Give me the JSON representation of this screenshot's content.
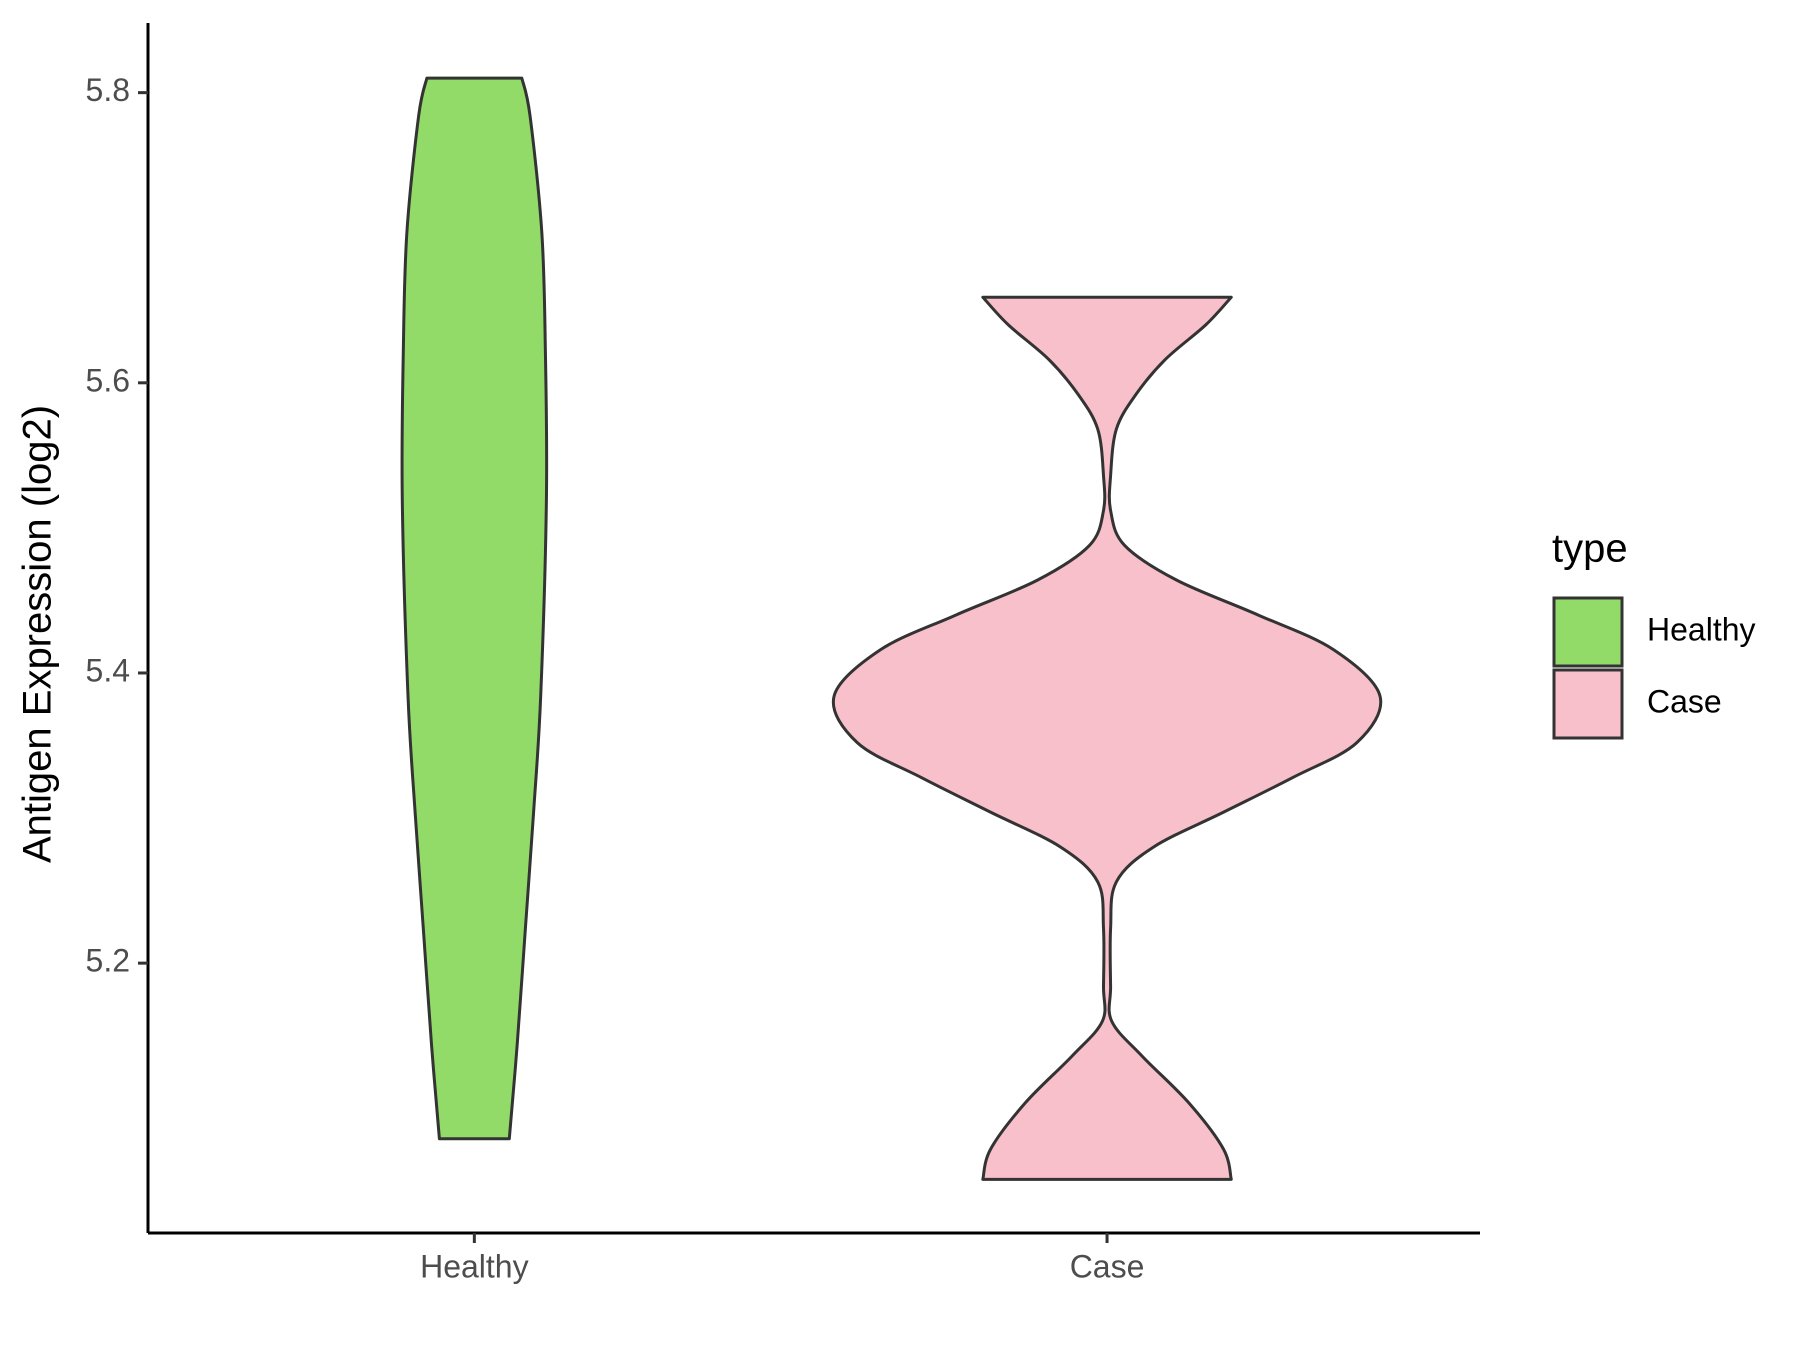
{
  "chart_data": {
    "type": "violin",
    "y_label": "Antigen Expression (log2)",
    "categories": [
      "Healthy",
      "Case"
    ],
    "ylim": [
      5.014,
      5.848
    ],
    "yticks": [
      5.2,
      5.4,
      5.6,
      5.8
    ],
    "legend_title": "type",
    "legend_position": "right",
    "series": [
      {
        "name": "Healthy",
        "color": "#93db68",
        "y": [
          5.81,
          5.784,
          5.704,
          5.624,
          5.52,
          5.384,
          5.304,
          5.224,
          5.144,
          5.079
        ],
        "density": [
          0.174,
          0.204,
          0.247,
          0.26,
          0.264,
          0.243,
          0.217,
          0.187,
          0.157,
          0.128
        ]
      },
      {
        "name": "Case",
        "color": "#f8c0cb",
        "y": [
          5.659,
          5.64,
          5.616,
          5.592,
          5.568,
          5.536,
          5.512,
          5.488,
          5.464,
          5.44,
          5.416,
          5.384,
          5.352,
          5.328,
          5.304,
          5.28,
          5.256,
          5.224,
          5.184,
          5.16,
          5.136,
          5.104,
          5.072,
          5.051
        ],
        "density": [
          0.455,
          0.362,
          0.213,
          0.106,
          0.034,
          0.013,
          0.013,
          0.064,
          0.255,
          0.553,
          0.83,
          1.0,
          0.915,
          0.681,
          0.426,
          0.17,
          0.034,
          0.013,
          0.013,
          0.017,
          0.128,
          0.298,
          0.426,
          0.455
        ]
      }
    ]
  }
}
